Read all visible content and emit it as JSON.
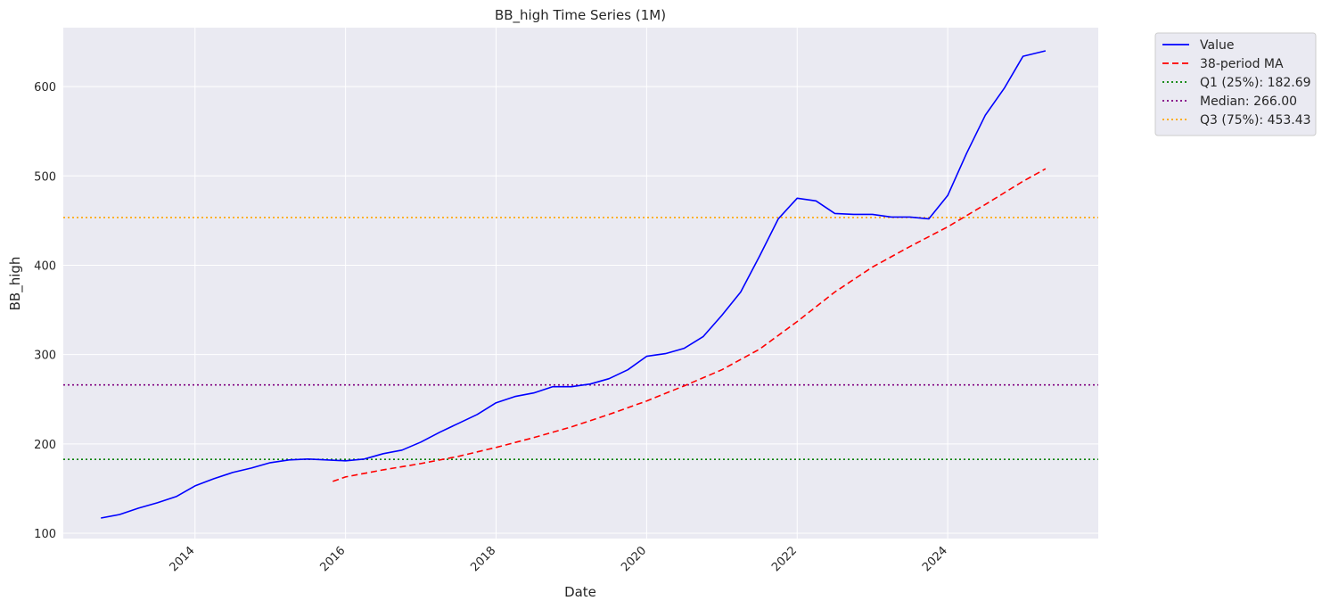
{
  "chart_data": {
    "type": "line",
    "title": "BB_high Time Series (1M)",
    "xlabel": "Date",
    "ylabel": "BB_high",
    "x_ticks": [
      "2014",
      "2016",
      "2018",
      "2020",
      "2022",
      "2024"
    ],
    "y_ticks": [
      "100",
      "200",
      "300",
      "400",
      "500",
      "600"
    ],
    "xlim": [
      2012.25,
      2026.0
    ],
    "ylim": [
      94,
      666
    ],
    "grid": true,
    "legend_position": "outside-top-right",
    "series": [
      {
        "name": "Value",
        "style": "solid",
        "color": "#0000ff",
        "x": [
          2012.75,
          2013.0,
          2013.25,
          2013.5,
          2013.75,
          2014.0,
          2014.25,
          2014.5,
          2014.75,
          2015.0,
          2015.25,
          2015.5,
          2015.75,
          2016.0,
          2016.25,
          2016.5,
          2016.75,
          2017.0,
          2017.25,
          2017.5,
          2017.75,
          2018.0,
          2018.25,
          2018.5,
          2018.75,
          2019.0,
          2019.25,
          2019.5,
          2019.75,
          2020.0,
          2020.25,
          2020.5,
          2020.75,
          2021.0,
          2021.25,
          2021.5,
          2021.75,
          2022.0,
          2022.25,
          2022.5,
          2022.75,
          2023.0,
          2023.25,
          2023.5,
          2023.75,
          2024.0,
          2024.25,
          2024.5,
          2024.75,
          2025.0,
          2025.3
        ],
        "values": [
          117,
          121,
          128,
          134,
          141,
          153,
          161,
          168,
          173,
          179,
          182,
          183,
          182,
          181,
          183,
          189,
          193,
          202,
          213,
          223,
          233,
          246,
          253,
          257,
          264,
          264,
          267,
          273,
          283,
          298,
          301,
          307,
          320,
          344,
          370,
          410,
          452,
          475,
          472,
          458,
          457,
          457,
          454,
          454,
          452,
          478,
          525,
          568,
          598,
          634,
          640
        ]
      },
      {
        "name": "38-period MA",
        "style": "dashed",
        "color": "#ff0000",
        "x": [
          2015.83,
          2016.0,
          2016.5,
          2017.0,
          2017.5,
          2018.0,
          2018.5,
          2019.0,
          2019.5,
          2020.0,
          2020.5,
          2021.0,
          2021.5,
          2022.0,
          2022.5,
          2023.0,
          2023.5,
          2024.0,
          2024.5,
          2025.0,
          2025.3
        ],
        "values": [
          158,
          163,
          171,
          178,
          186,
          196,
          207,
          219,
          233,
          248,
          265,
          283,
          306,
          337,
          370,
          398,
          421,
          443,
          468,
          494,
          508
        ]
      }
    ],
    "reference_lines": [
      {
        "name": "Q1 (25%): 182.69",
        "value": 182.69,
        "color": "#008000",
        "style": "dotted"
      },
      {
        "name": "Median: 266.00",
        "value": 266.0,
        "color": "#800080",
        "style": "dotted"
      },
      {
        "name": "Q3 (75%): 453.43",
        "value": 453.43,
        "color": "#ffa500",
        "style": "dotted"
      }
    ]
  }
}
